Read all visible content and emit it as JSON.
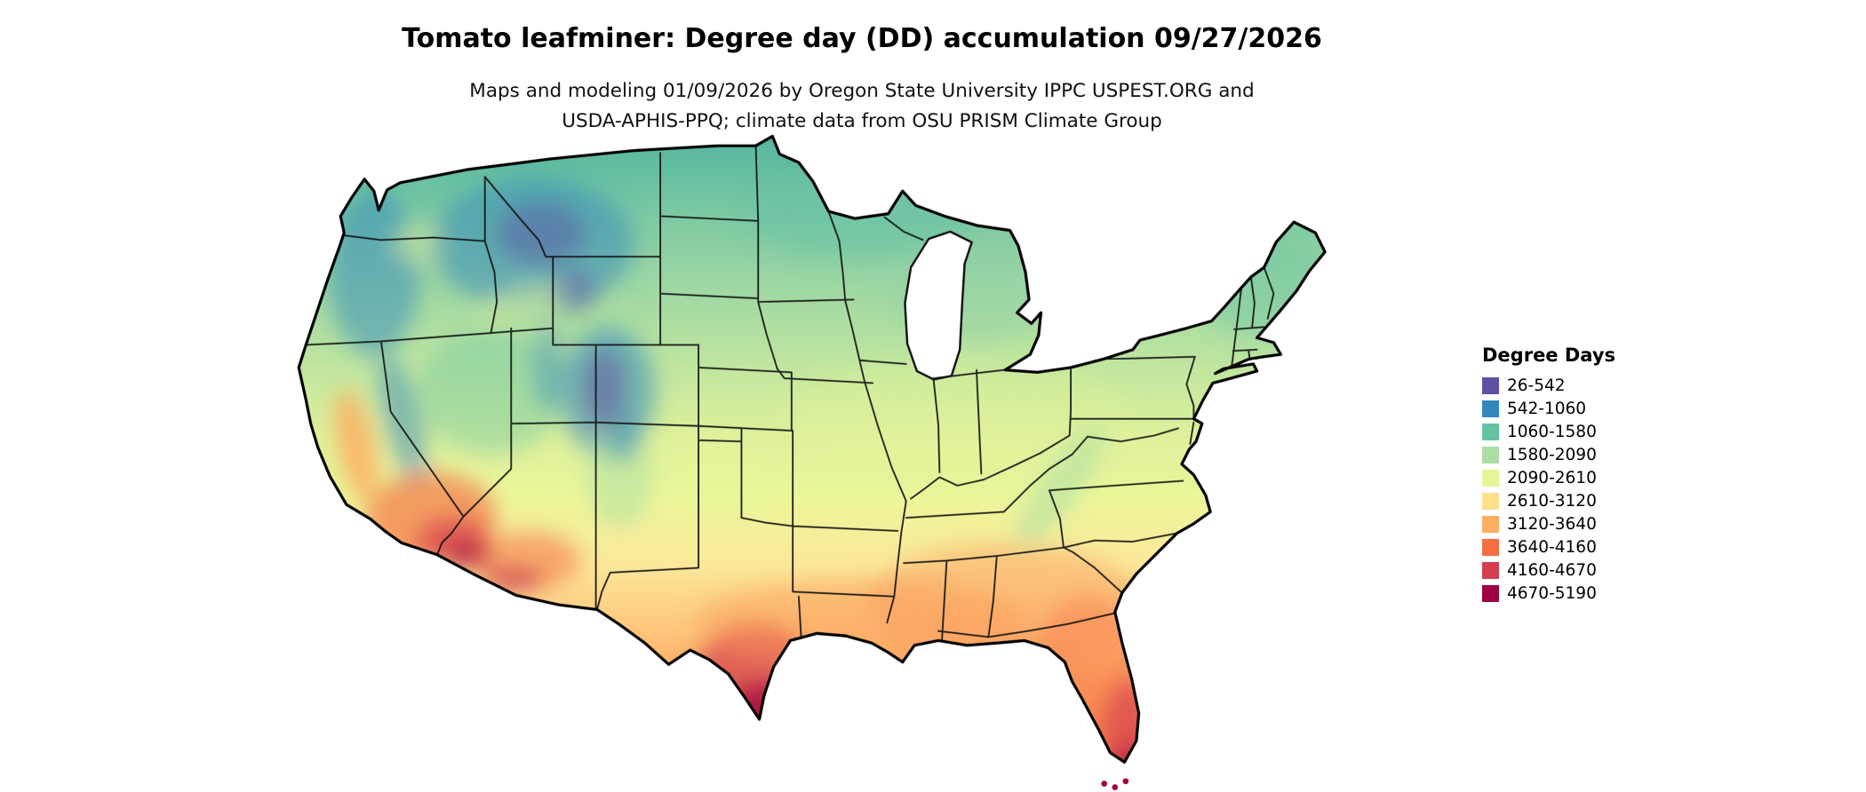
{
  "header": {
    "title": "Tomato leafminer: Degree day (DD) accumulation 09/27/2026",
    "subtitle_line1": "Maps and modeling 01/09/2026 by Oregon State University IPPC USPEST.ORG and",
    "subtitle_line2": "USDA-APHIS-PPQ; climate data from OSU PRISM Climate Group"
  },
  "map": {
    "kind": "degree-day choropleth raster",
    "area": "contiguous United States with state borders"
  },
  "legend": {
    "title": "Degree Days",
    "items": [
      {
        "label": "26-542",
        "color": "#5e4fa2"
      },
      {
        "label": "542-1060",
        "color": "#3288bd"
      },
      {
        "label": "1060-1580",
        "color": "#66c2a5"
      },
      {
        "label": "1580-2090",
        "color": "#abdda4"
      },
      {
        "label": "2090-2610",
        "color": "#e6f598"
      },
      {
        "label": "2610-3120",
        "color": "#fee08b"
      },
      {
        "label": "3120-3640",
        "color": "#fdae61"
      },
      {
        "label": "3640-4160",
        "color": "#f46d43"
      },
      {
        "label": "4160-4670",
        "color": "#d53e4f"
      },
      {
        "label": "4670-5190",
        "color": "#9e0142"
      }
    ]
  }
}
